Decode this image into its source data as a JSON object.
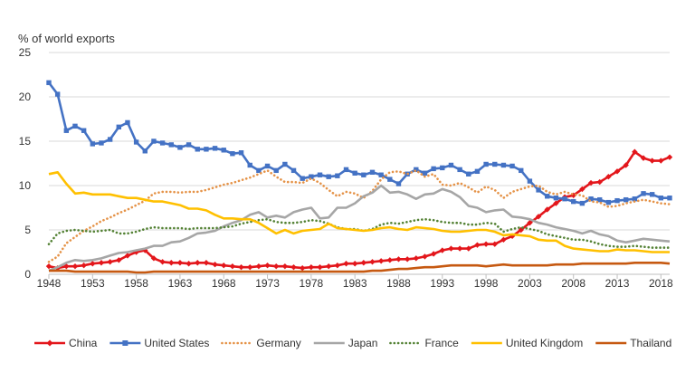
{
  "chart_data": {
    "type": "line",
    "ylabel": "% of world exports",
    "ylim": [
      0,
      25
    ],
    "yticks": [
      0,
      5,
      10,
      15,
      20,
      25
    ],
    "xlim": [
      1948,
      2019
    ],
    "xticks": [
      1948,
      1953,
      1958,
      1963,
      1968,
      1973,
      1978,
      1983,
      1988,
      1993,
      1998,
      2003,
      2008,
      2013,
      2018
    ],
    "grid": "horizontal",
    "legend_position": "bottom",
    "x": [
      1948,
      1949,
      1950,
      1951,
      1952,
      1953,
      1954,
      1955,
      1956,
      1957,
      1958,
      1959,
      1960,
      1961,
      1962,
      1963,
      1964,
      1965,
      1966,
      1967,
      1968,
      1969,
      1970,
      1971,
      1972,
      1973,
      1974,
      1975,
      1976,
      1977,
      1978,
      1979,
      1980,
      1981,
      1982,
      1983,
      1984,
      1985,
      1986,
      1987,
      1988,
      1989,
      1990,
      1991,
      1992,
      1993,
      1994,
      1995,
      1996,
      1997,
      1998,
      1999,
      2000,
      2001,
      2002,
      2003,
      2004,
      2005,
      2006,
      2007,
      2008,
      2009,
      2010,
      2011,
      2012,
      2013,
      2014,
      2015,
      2016,
      2017,
      2018,
      2019
    ],
    "series": [
      {
        "name": "China",
        "color": "#e3161b",
        "style": "solid",
        "marker": "diamond",
        "values": [
          0.9,
          0.7,
          0.9,
          0.9,
          1.0,
          1.2,
          1.3,
          1.4,
          1.6,
          2.1,
          2.5,
          2.7,
          1.8,
          1.4,
          1.3,
          1.3,
          1.2,
          1.3,
          1.3,
          1.1,
          1.0,
          0.9,
          0.8,
          0.8,
          0.9,
          1.0,
          0.9,
          0.9,
          0.8,
          0.7,
          0.8,
          0.8,
          0.9,
          1.0,
          1.2,
          1.2,
          1.3,
          1.4,
          1.5,
          1.6,
          1.7,
          1.7,
          1.8,
          2.0,
          2.3,
          2.7,
          2.9,
          2.9,
          2.9,
          3.3,
          3.4,
          3.4,
          3.9,
          4.3,
          5.0,
          5.8,
          6.5,
          7.3,
          8.0,
          8.7,
          8.9,
          9.6,
          10.3,
          10.4,
          11.0,
          11.6,
          12.3,
          13.8,
          13.1,
          12.8,
          12.8,
          13.2
        ]
      },
      {
        "name": "United States",
        "color": "#4472c4",
        "style": "solid",
        "marker": "square",
        "values": [
          21.6,
          20.3,
          16.2,
          16.7,
          16.2,
          14.7,
          14.8,
          15.2,
          16.6,
          17.1,
          14.9,
          13.9,
          15.0,
          14.8,
          14.6,
          14.3,
          14.6,
          14.1,
          14.1,
          14.2,
          14.0,
          13.6,
          13.7,
          12.3,
          11.7,
          12.2,
          11.7,
          12.4,
          11.7,
          10.8,
          11.0,
          11.2,
          11.0,
          11.1,
          11.8,
          11.4,
          11.2,
          11.5,
          11.2,
          10.7,
          10.2,
          11.3,
          11.8,
          11.4,
          11.9,
          12.0,
          12.3,
          11.8,
          11.3,
          11.6,
          12.4,
          12.4,
          12.3,
          12.2,
          11.7,
          10.5,
          9.5,
          8.8,
          8.6,
          8.5,
          8.2,
          8.0,
          8.5,
          8.4,
          8.1,
          8.3,
          8.4,
          8.5,
          9.1,
          9.0,
          8.6,
          8.6
        ]
      },
      {
        "name": "Germany",
        "color": "#e59348",
        "style": "dotted",
        "marker": "none",
        "values": [
          1.4,
          2.0,
          3.5,
          4.2,
          4.9,
          5.4,
          6.0,
          6.4,
          6.9,
          7.3,
          7.8,
          8.3,
          9.1,
          9.3,
          9.3,
          9.2,
          9.3,
          9.3,
          9.5,
          9.8,
          10.1,
          10.3,
          10.6,
          10.9,
          11.3,
          11.7,
          11.0,
          10.4,
          10.4,
          10.3,
          10.8,
          10.3,
          9.5,
          8.8,
          9.3,
          9.1,
          8.6,
          9.4,
          10.7,
          11.5,
          11.6,
          11.3,
          11.7,
          11.0,
          11.3,
          10.1,
          10.0,
          10.3,
          9.8,
          9.2,
          9.9,
          9.5,
          8.6,
          9.3,
          9.6,
          9.9,
          10.0,
          9.3,
          9.0,
          9.3,
          9.0,
          8.9,
          8.2,
          8.1,
          7.6,
          7.7,
          8.0,
          8.2,
          8.4,
          8.2,
          8.0,
          7.9
        ]
      },
      {
        "name": "Japan",
        "color": "#a6a6a6",
        "style": "solid",
        "marker": "none",
        "values": [
          0.4,
          0.8,
          1.3,
          1.6,
          1.5,
          1.6,
          1.8,
          2.1,
          2.4,
          2.5,
          2.7,
          2.9,
          3.2,
          3.2,
          3.6,
          3.7,
          4.1,
          4.6,
          4.7,
          4.9,
          5.4,
          5.8,
          6.1,
          6.7,
          7.0,
          6.4,
          6.6,
          6.4,
          7.0,
          7.3,
          7.5,
          6.3,
          6.4,
          7.5,
          7.5,
          8.0,
          8.8,
          9.2,
          10.0,
          9.2,
          9.3,
          9.0,
          8.5,
          9.0,
          9.1,
          9.6,
          9.3,
          8.7,
          7.7,
          7.5,
          7.0,
          7.2,
          7.3,
          6.5,
          6.4,
          6.2,
          5.8,
          5.6,
          5.3,
          5.1,
          4.9,
          4.6,
          4.9,
          4.5,
          4.3,
          3.8,
          3.6,
          3.8,
          4.0,
          3.9,
          3.8,
          3.7
        ]
      },
      {
        "name": "France",
        "color": "#548235",
        "style": "dotted",
        "marker": "none",
        "values": [
          3.4,
          4.6,
          4.9,
          5.0,
          4.9,
          4.8,
          4.9,
          5.0,
          4.6,
          4.6,
          4.8,
          5.1,
          5.3,
          5.2,
          5.2,
          5.2,
          5.1,
          5.2,
          5.2,
          5.2,
          5.3,
          5.4,
          5.7,
          5.9,
          6.1,
          6.2,
          5.9,
          5.8,
          5.8,
          5.9,
          6.1,
          6.0,
          5.7,
          5.3,
          5.1,
          5.1,
          4.9,
          5.1,
          5.6,
          5.8,
          5.7,
          5.9,
          6.1,
          6.2,
          6.1,
          5.9,
          5.8,
          5.8,
          5.6,
          5.6,
          5.8,
          5.7,
          4.8,
          5.1,
          5.3,
          5.1,
          4.9,
          4.5,
          4.3,
          4.1,
          3.9,
          3.9,
          3.7,
          3.4,
          3.2,
          3.1,
          3.1,
          3.2,
          3.1,
          3.0,
          3.0,
          3.0
        ]
      },
      {
        "name": "United Kingdom",
        "color": "#ffc000",
        "style": "solid",
        "marker": "none",
        "values": [
          11.3,
          11.5,
          10.2,
          9.1,
          9.2,
          9.0,
          9.0,
          9.0,
          8.8,
          8.6,
          8.6,
          8.4,
          8.2,
          8.2,
          8.0,
          7.8,
          7.4,
          7.4,
          7.2,
          6.7,
          6.3,
          6.3,
          6.2,
          6.2,
          5.8,
          5.2,
          4.6,
          5.0,
          4.6,
          4.9,
          5.0,
          5.1,
          5.7,
          5.2,
          5.1,
          5.0,
          4.9,
          5.0,
          5.2,
          5.3,
          5.1,
          5.0,
          5.3,
          5.2,
          5.1,
          4.9,
          4.8,
          4.8,
          4.9,
          5.0,
          5.0,
          4.8,
          4.4,
          4.5,
          4.4,
          4.3,
          3.9,
          3.8,
          3.8,
          3.2,
          2.9,
          2.8,
          2.7,
          2.6,
          2.6,
          2.8,
          2.7,
          2.7,
          2.6,
          2.5,
          2.5,
          2.5
        ]
      },
      {
        "name": "Thailand",
        "color": "#c65911",
        "style": "solid",
        "marker": "none",
        "values": [
          0.4,
          0.4,
          0.4,
          0.3,
          0.3,
          0.3,
          0.3,
          0.3,
          0.3,
          0.3,
          0.2,
          0.2,
          0.3,
          0.3,
          0.3,
          0.3,
          0.3,
          0.3,
          0.3,
          0.3,
          0.3,
          0.3,
          0.3,
          0.3,
          0.3,
          0.3,
          0.3,
          0.3,
          0.3,
          0.3,
          0.3,
          0.3,
          0.3,
          0.3,
          0.3,
          0.3,
          0.3,
          0.4,
          0.4,
          0.5,
          0.6,
          0.6,
          0.7,
          0.8,
          0.8,
          0.9,
          1.0,
          1.0,
          1.0,
          1.0,
          0.9,
          1.0,
          1.1,
          1.0,
          1.0,
          1.0,
          1.0,
          1.0,
          1.1,
          1.1,
          1.1,
          1.2,
          1.2,
          1.2,
          1.2,
          1.2,
          1.2,
          1.3,
          1.3,
          1.3,
          1.3,
          1.2
        ]
      }
    ]
  }
}
